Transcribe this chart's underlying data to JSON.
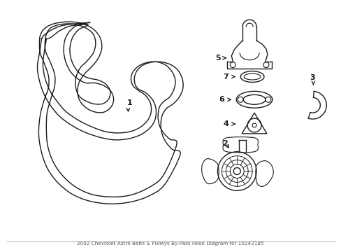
{
  "title": "2002 Chevrolet Astro Belts & Pulleys By-Pass Hose Diagram for 10242185",
  "background_color": "#ffffff",
  "line_color": "#1a1a1a",
  "figsize": [
    4.89,
    3.6
  ],
  "dpi": 100
}
